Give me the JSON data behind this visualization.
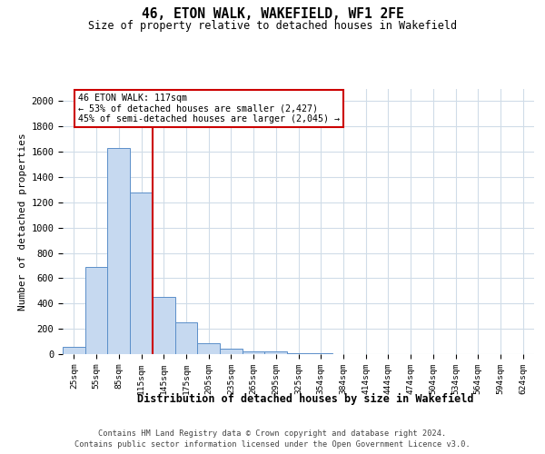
{
  "title": "46, ETON WALK, WAKEFIELD, WF1 2FE",
  "subtitle": "Size of property relative to detached houses in Wakefield",
  "xlabel": "Distribution of detached houses by size in Wakefield",
  "ylabel": "Number of detached properties",
  "bar_color": "#c6d9f0",
  "bar_edge_color": "#5b8fc9",
  "vline_color": "#cc0000",
  "vline_x": 3.5,
  "annotation_text": "46 ETON WALK: 117sqm\n← 53% of detached houses are smaller (2,427)\n45% of semi-detached houses are larger (2,045) →",
  "annotation_box_color": "#cc0000",
  "all_labels": [
    "25sqm",
    "55sqm",
    "85sqm",
    "115sqm",
    "145sqm",
    "175sqm",
    "205sqm",
    "235sqm",
    "265sqm",
    "295sqm",
    "325sqm",
    "354sqm",
    "384sqm",
    "414sqm",
    "444sqm",
    "474sqm",
    "504sqm",
    "534sqm",
    "564sqm",
    "594sqm",
    "624sqm"
  ],
  "all_values": [
    60,
    690,
    1630,
    1280,
    450,
    250,
    85,
    45,
    25,
    18,
    10,
    5,
    2,
    0,
    2,
    0,
    0,
    0,
    0,
    0,
    0
  ],
  "ylim": [
    0,
    2100
  ],
  "yticks": [
    0,
    200,
    400,
    600,
    800,
    1000,
    1200,
    1400,
    1600,
    1800,
    2000
  ],
  "bg_color": "#ffffff",
  "grid_color": "#d0dce8",
  "footer_line1": "Contains HM Land Registry data © Crown copyright and database right 2024.",
  "footer_line2": "Contains public sector information licensed under the Open Government Licence v3.0."
}
